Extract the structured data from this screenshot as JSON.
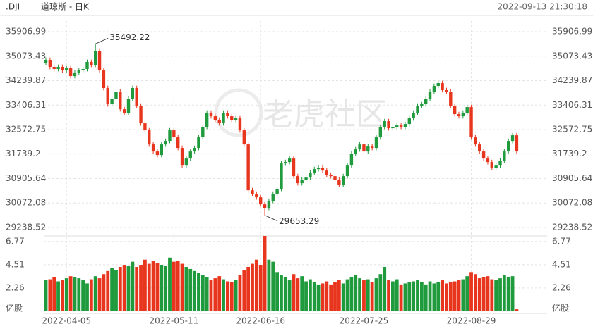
{
  "header": {
    "symbol": ".DJI",
    "name": "道琼斯 - 日K",
    "time": "2022-09-13 21:30:18"
  },
  "watermark": "老虎社区",
  "chart_data": {
    "type": "candlestick",
    "categories": [
      null,
      null,
      null,
      null,
      null,
      "2022-04-05",
      null,
      null,
      null,
      null,
      null,
      null,
      null,
      null,
      null,
      null,
      null,
      null,
      null,
      null,
      null,
      null,
      null,
      null,
      null,
      null,
      null,
      null,
      null,
      null,
      null,
      "2022-05-11",
      null,
      null,
      null,
      null,
      null,
      null,
      null,
      null,
      null,
      null,
      null,
      null,
      null,
      null,
      null,
      null,
      null,
      null,
      null,
      null,
      "2022-06-16",
      null,
      null,
      null,
      null,
      null,
      null,
      null,
      null,
      null,
      null,
      null,
      null,
      null,
      null,
      null,
      null,
      null,
      null,
      null,
      null,
      null,
      null,
      null,
      null,
      "2022-07-25",
      null,
      null,
      null,
      null,
      null,
      null,
      null,
      null,
      null,
      null,
      null,
      null,
      null,
      null,
      null,
      null,
      null,
      null,
      null,
      null,
      null,
      null,
      null,
      null,
      null,
      "2022-08-29",
      null,
      null,
      null,
      null,
      null,
      null,
      null,
      null,
      null,
      null,
      null
    ],
    "open": [
      34850,
      34947,
      34707,
      34635,
      34707,
      34587,
      34659,
      34395,
      34515,
      34587,
      34635,
      34875,
      34779,
      35259,
      34587,
      33987,
      33435,
      33627,
      33867,
      33267,
      33147,
      33627,
      33987,
      33387,
      32787,
      32547,
      32067,
      31827,
      31707,
      32067,
      32187,
      32547,
      32307,
      31947,
      31347,
      31587,
      31827,
      31947,
      32307,
      32667,
      33147,
      33027,
      32907,
      32787,
      33147,
      33027,
      32907,
      32955,
      32547,
      32067,
      30507,
      30387,
      30267,
      30027,
      29907,
      30147,
      30387,
      30555,
      31419,
      31467,
      31587,
      30987,
      30747,
      30867,
      30939,
      31107,
      31227,
      31275,
      31179,
      31035,
      30987,
      30867,
      30699,
      30987,
      31347,
      31755,
      31899,
      32067,
      31827,
      31995,
      31947,
      32307,
      32667,
      32859,
      32619,
      32667,
      32715,
      32667,
      32763,
      32955,
      33147,
      33387,
      33435,
      33627,
      33867,
      34059,
      34155,
      33915,
      33867,
      33387,
      33099,
      33027,
      33147,
      33339,
      32307,
      32067,
      31827,
      31587,
      31467,
      31275,
      31347,
      31515,
      31827,
      32187,
      32379
    ],
    "high": [
      35027,
      35027,
      34787,
      34787,
      34787,
      34739,
      34739,
      34595,
      34667,
      34715,
      34955,
      34955,
      35492.22,
      35339,
      34667,
      34067,
      33707,
      33947,
      33947,
      33347,
      33707,
      34067,
      34067,
      33467,
      32867,
      32627,
      32147,
      31907,
      32147,
      32267,
      32627,
      32627,
      32387,
      32027,
      31667,
      31907,
      32027,
      32387,
      32747,
      33227,
      33227,
      33107,
      32987,
      33227,
      33227,
      33107,
      33035,
      33035,
      32627,
      32147,
      30587,
      30467,
      30347,
      30107,
      30227,
      30467,
      30635,
      31499,
      31547,
      31667,
      31667,
      31067,
      30947,
      31019,
      31187,
      31307,
      31355,
      31355,
      31259,
      31115,
      31067,
      30947,
      31067,
      31427,
      31835,
      31979,
      32147,
      32147,
      32075,
      32075,
      32387,
      32747,
      32939,
      32939,
      32747,
      32795,
      32795,
      32843,
      33035,
      33227,
      33467,
      33515,
      33707,
      33947,
      34139,
      34235,
      34235,
      33995,
      33947,
      33467,
      33179,
      33227,
      33419,
      33419,
      32387,
      32147,
      31907,
      31667,
      31547,
      31427,
      31595,
      31907,
      32267,
      32459,
      32459
    ],
    "low": [
      34770,
      34627,
      34555,
      34555,
      34507,
      34507,
      34315,
      34315,
      34435,
      34507,
      34555,
      34699,
      34699,
      34507,
      33907,
      33355,
      33355,
      33547,
      33187,
      33067,
      33067,
      33547,
      33307,
      32707,
      32467,
      31987,
      31747,
      31627,
      31627,
      31987,
      32107,
      32227,
      31867,
      31267,
      31267,
      31507,
      31747,
      31867,
      32227,
      32587,
      32947,
      32827,
      32707,
      32707,
      32947,
      32827,
      32827,
      32467,
      31987,
      30427,
      30307,
      30187,
      29947,
      29653.29,
      29827,
      30067,
      30307,
      30475,
      31339,
      31387,
      30907,
      30667,
      30667,
      30787,
      30859,
      31027,
      31147,
      31099,
      30955,
      30907,
      30787,
      30619,
      30619,
      30907,
      31267,
      31675,
      31819,
      31747,
      31747,
      31867,
      31867,
      32227,
      32587,
      32539,
      32539,
      32587,
      32587,
      32587,
      32683,
      32875,
      33067,
      33307,
      33355,
      33547,
      33787,
      33979,
      33835,
      33787,
      33307,
      33019,
      32947,
      32947,
      33067,
      32227,
      31987,
      31747,
      31507,
      31387,
      31195,
      31195,
      31267,
      31435,
      31747,
      32107,
      31747
    ],
    "close": [
      34947,
      34707,
      34635,
      34707,
      34587,
      34659,
      34395,
      34515,
      34587,
      34635,
      34875,
      34779,
      35259,
      34587,
      33987,
      33435,
      33627,
      33867,
      33267,
      33147,
      33627,
      33987,
      33387,
      32787,
      32547,
      32067,
      31827,
      31707,
      32067,
      32187,
      32547,
      32307,
      31947,
      31347,
      31587,
      31827,
      31947,
      32307,
      32667,
      33147,
      33027,
      32907,
      32787,
      33147,
      33027,
      32907,
      32955,
      32547,
      32067,
      30507,
      30387,
      30267,
      30027,
      29907,
      30147,
      30387,
      30555,
      31419,
      31467,
      31587,
      30987,
      30747,
      30867,
      30939,
      31107,
      31227,
      31275,
      31179,
      31035,
      30987,
      30867,
      30699,
      30987,
      31347,
      31755,
      31899,
      32067,
      31827,
      31995,
      31947,
      32307,
      32667,
      32859,
      32619,
      32667,
      32715,
      32667,
      32763,
      32955,
      33147,
      33387,
      33435,
      33627,
      33867,
      34059,
      34155,
      33915,
      33867,
      33387,
      33099,
      33027,
      33147,
      33339,
      32307,
      32067,
      31827,
      31587,
      31467,
      31275,
      31347,
      31515,
      31827,
      32187,
      32379,
      31827
    ],
    "up_color": "#1f9a3c",
    "down_color": "#e8361e",
    "ylim": [
      29238.52,
      35906.99
    ],
    "yticks": [
      35906.99,
      35073.43,
      34239.87,
      33406.31,
      32572.75,
      31739.2,
      30905.64,
      30072.08,
      29238.52
    ],
    "grid": true,
    "volume": {
      "type": "bar",
      "unit": "亿股",
      "values": [
        3.0,
        3.1,
        3.3,
        2.9,
        3.0,
        3.2,
        3.4,
        3.3,
        3.2,
        3.0,
        2.7,
        3.1,
        3.4,
        3.2,
        3.6,
        3.9,
        4.2,
        4.0,
        4.3,
        4.5,
        4.4,
        4.8,
        4.3,
        4.5,
        5.0,
        4.6,
        4.9,
        4.7,
        4.5,
        4.4,
        5.2,
        4.8,
        4.9,
        4.6,
        4.3,
        4.1,
        3.9,
        3.7,
        3.5,
        3.3,
        3.0,
        3.2,
        3.4,
        3.1,
        2.9,
        2.8,
        3.0,
        3.5,
        4.0,
        4.3,
        4.6,
        5.0,
        4.5,
        7.3,
        5.0,
        4.8,
        3.8,
        3.5,
        3.3,
        3.0,
        3.6,
        3.2,
        3.4,
        2.9,
        3.1,
        2.8,
        2.6,
        2.7,
        2.9,
        2.6,
        2.8,
        3.0,
        2.7,
        3.1,
        3.3,
        3.5,
        3.2,
        3.0,
        3.1,
        2.8,
        3.2,
        3.6,
        4.3,
        3.0,
        2.9,
        3.1,
        2.6,
        2.7,
        2.8,
        2.9,
        3.0,
        2.8,
        2.6,
        2.9,
        2.7,
        2.8,
        3.0,
        2.7,
        2.8,
        2.9,
        3.0,
        3.1,
        3.4,
        3.8,
        3.6,
        3.2,
        3.3,
        3.4,
        3.1,
        3.0,
        3.2,
        3.5,
        3.3,
        3.4,
        0.2
      ],
      "ylim": [
        0,
        7.3
      ],
      "yticks": [
        2.26,
        4.51,
        6.77
      ]
    }
  }
}
